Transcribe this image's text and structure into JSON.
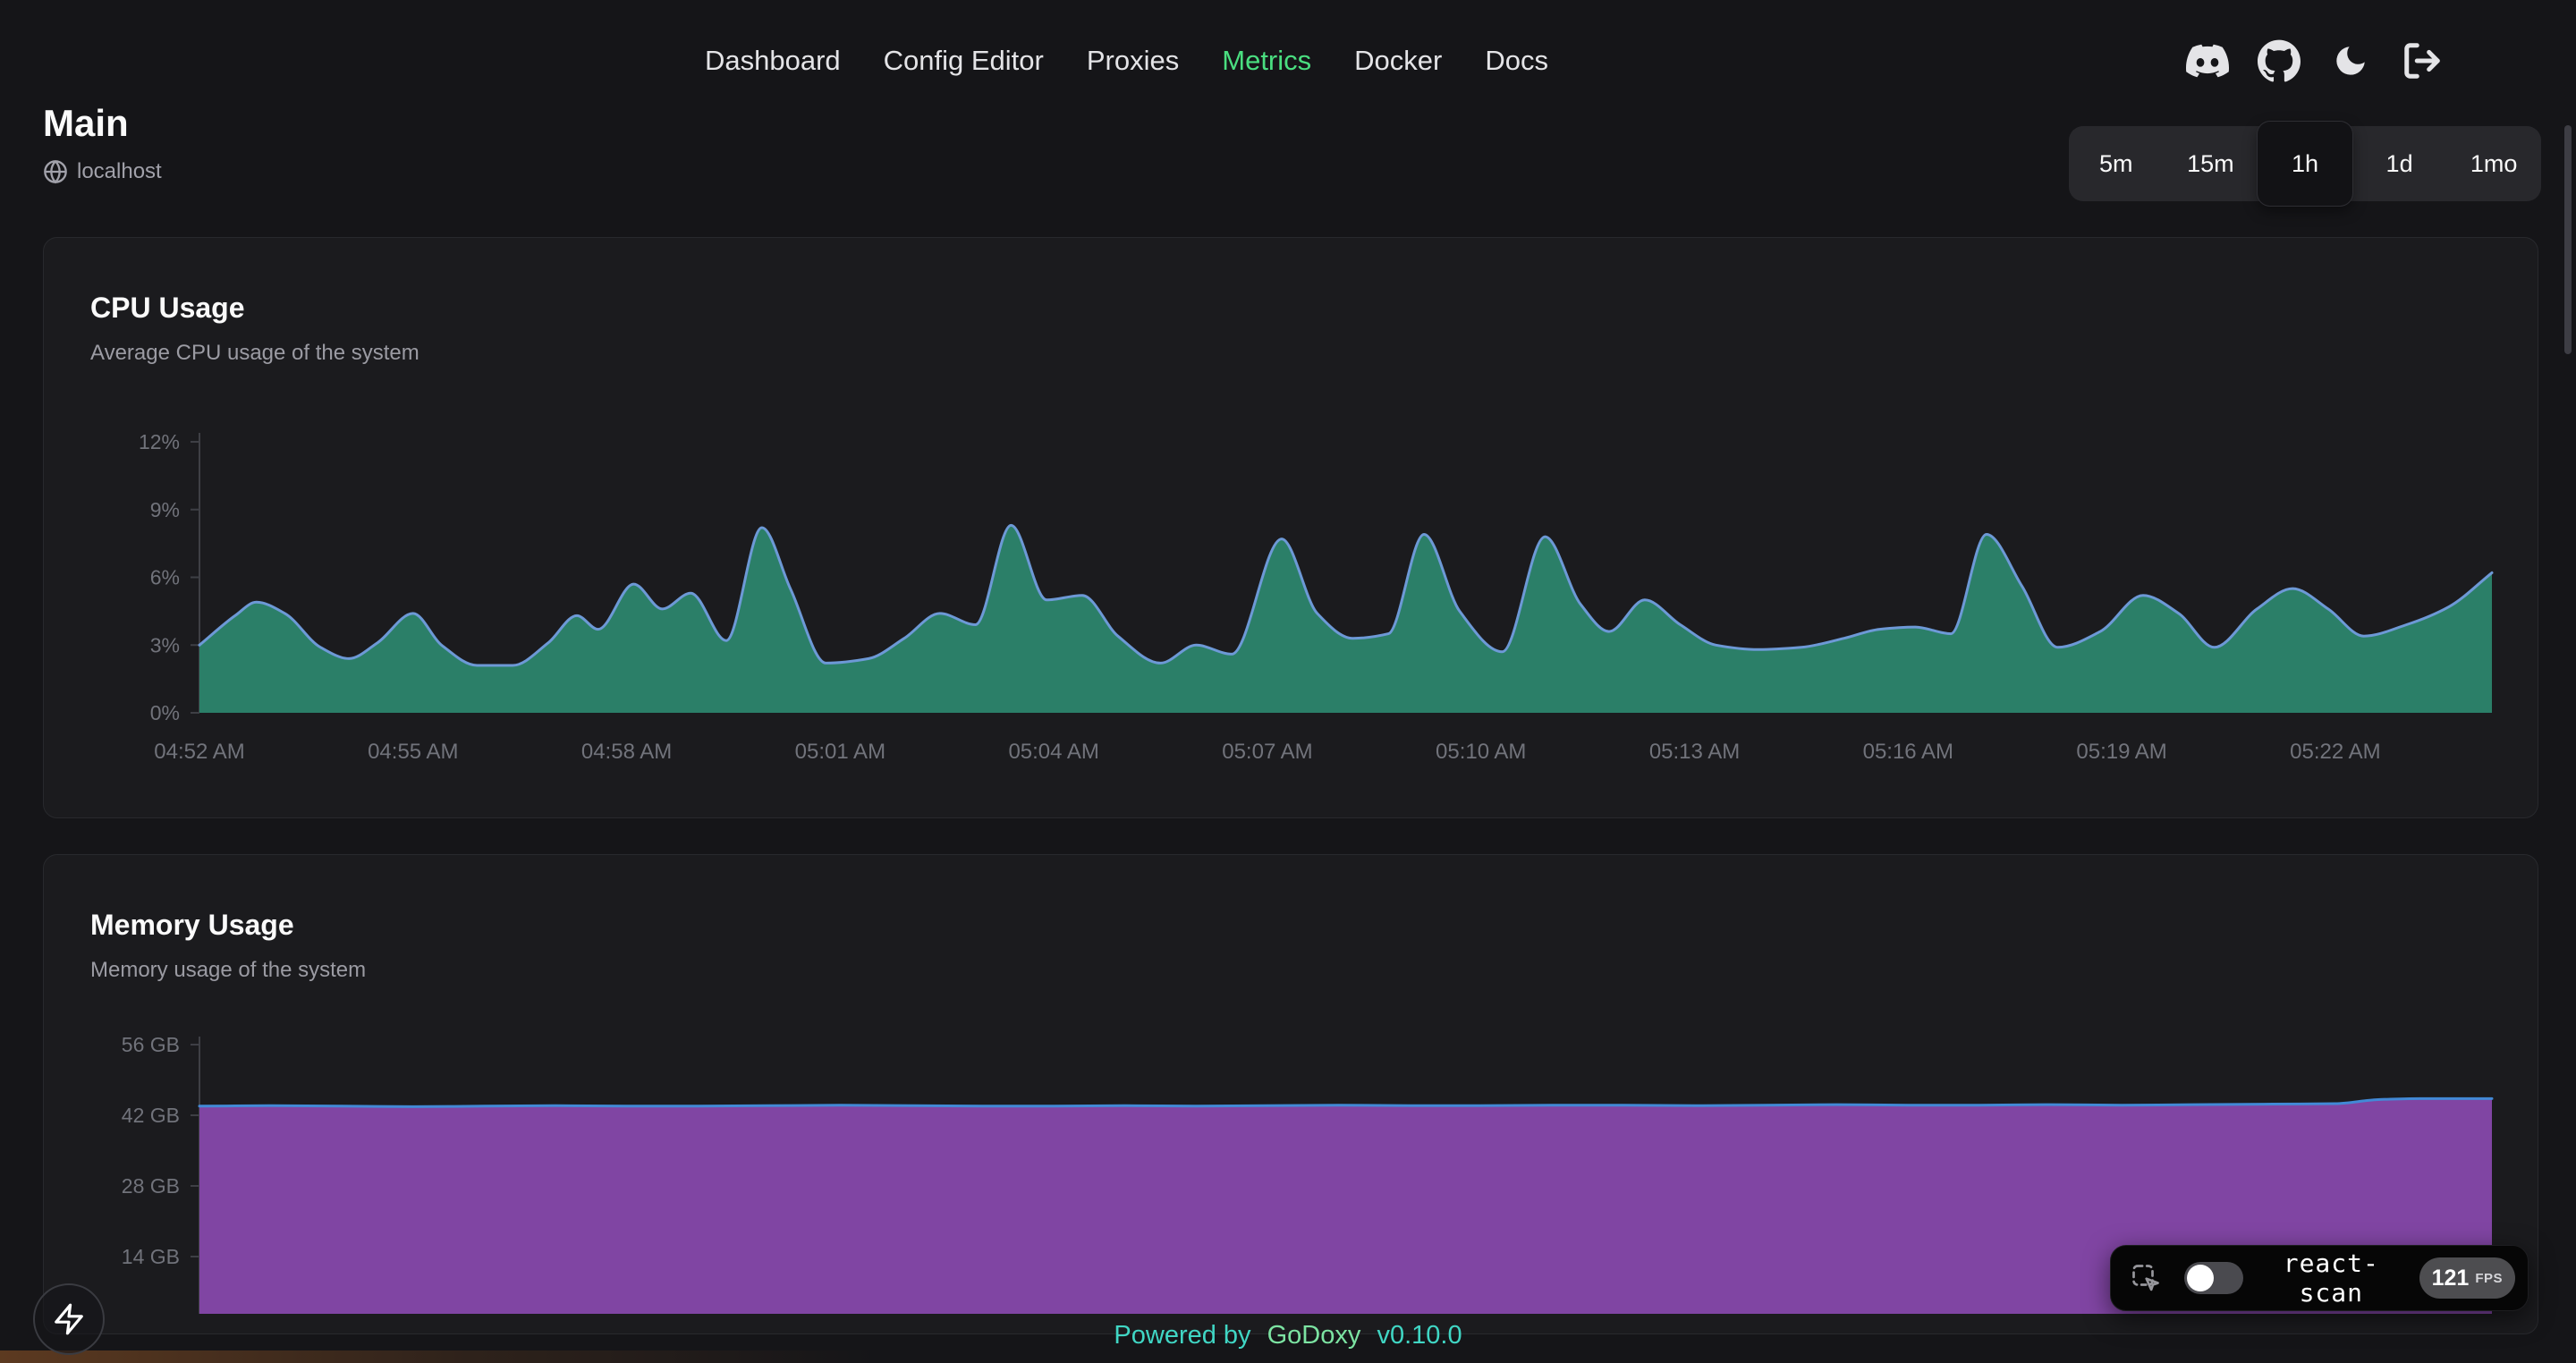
{
  "nav": {
    "items": [
      {
        "label": "Dashboard",
        "active": false
      },
      {
        "label": "Config Editor",
        "active": false
      },
      {
        "label": "Proxies",
        "active": false
      },
      {
        "label": "Metrics",
        "active": true
      },
      {
        "label": "Docker",
        "active": false
      },
      {
        "label": "Docs",
        "active": false
      }
    ],
    "icons": [
      "discord",
      "github",
      "moon-theme-toggle",
      "logout"
    ]
  },
  "page": {
    "agent_name": "Main",
    "host": "localhost",
    "host_icon": "globe"
  },
  "time_range": {
    "options": [
      "5m",
      "15m",
      "1h",
      "1d",
      "1mo"
    ],
    "selected": "1h"
  },
  "cards": [
    {
      "title": "CPU Usage",
      "subtitle": "Average CPU usage of the system"
    },
    {
      "title": "Memory Usage",
      "subtitle": "Memory usage of the system"
    }
  ],
  "footer": {
    "powered_by": "Powered by",
    "brand": "GoDoxy",
    "version": "v0.10.0"
  },
  "react_scan": {
    "label": "react-scan",
    "fps": "121",
    "fps_unit": "FPS",
    "toggle_on": false,
    "inspect_icon": "dashed-box-pointer"
  },
  "fab_icon": "lightning-bolt",
  "colors": {
    "page_bg": "#151518",
    "card_bg": "#1b1b1e",
    "accent_green": "#4ade80",
    "cpu_fill": "#2b7f68",
    "cpu_stroke": "#6d99d6",
    "mem_fill": "#8045a3",
    "mem_stroke": "#4289d6",
    "footer_teal": "#40d6c4"
  },
  "chart_data": [
    {
      "type": "area",
      "title": "CPU Usage",
      "subtitle": "Average CPU usage of the system",
      "unit": "%",
      "grid": false,
      "legend": false,
      "ylim": [
        0,
        12.4
      ],
      "y_ticks": [
        0,
        3,
        6,
        9,
        12
      ],
      "y_tick_labels": [
        "0%",
        "3%",
        "6%",
        "9%",
        "12%"
      ],
      "x_domain_minutes": [
        0,
        32.2
      ],
      "x_ticks": [
        {
          "t": 0,
          "label": "04:52 AM"
        },
        {
          "t": 3,
          "label": "04:55 AM"
        },
        {
          "t": 6,
          "label": "04:58 AM"
        },
        {
          "t": 9,
          "label": "05:01 AM"
        },
        {
          "t": 12,
          "label": "05:04 AM"
        },
        {
          "t": 15,
          "label": "05:07 AM"
        },
        {
          "t": 18,
          "label": "05:10 AM"
        },
        {
          "t": 21,
          "label": "05:13 AM"
        },
        {
          "t": 24,
          "label": "05:16 AM"
        },
        {
          "t": 27,
          "label": "05:19 AM"
        },
        {
          "t": 30,
          "label": "05:22 AM"
        }
      ],
      "points": [
        [
          0,
          3.0
        ],
        [
          0.5,
          4.3
        ],
        [
          0.8,
          4.9
        ],
        [
          1.2,
          4.4
        ],
        [
          1.7,
          2.9
        ],
        [
          2.1,
          2.4
        ],
        [
          2.5,
          3.1
        ],
        [
          3.0,
          4.4
        ],
        [
          3.4,
          3.0
        ],
        [
          3.9,
          2.1
        ],
        [
          4.4,
          2.1
        ],
        [
          4.9,
          3.1
        ],
        [
          5.3,
          4.3
        ],
        [
          5.6,
          3.7
        ],
        [
          6.1,
          5.7
        ],
        [
          6.5,
          4.6
        ],
        [
          6.9,
          5.3
        ],
        [
          7.4,
          3.2
        ],
        [
          7.9,
          8.2
        ],
        [
          8.3,
          5.5
        ],
        [
          8.8,
          2.2
        ],
        [
          9.4,
          2.4
        ],
        [
          9.9,
          3.3
        ],
        [
          10.4,
          4.4
        ],
        [
          10.9,
          3.9
        ],
        [
          11.4,
          8.3
        ],
        [
          11.9,
          5.0
        ],
        [
          12.4,
          5.2
        ],
        [
          12.9,
          3.4
        ],
        [
          13.5,
          2.2
        ],
        [
          14.0,
          3.0
        ],
        [
          14.5,
          2.6
        ],
        [
          15.2,
          7.7
        ],
        [
          15.7,
          4.4
        ],
        [
          16.2,
          3.3
        ],
        [
          16.7,
          3.5
        ],
        [
          17.2,
          7.9
        ],
        [
          17.7,
          4.5
        ],
        [
          18.3,
          2.7
        ],
        [
          18.9,
          7.8
        ],
        [
          19.4,
          4.8
        ],
        [
          19.8,
          3.6
        ],
        [
          20.3,
          5.0
        ],
        [
          20.8,
          3.9
        ],
        [
          21.3,
          3.0
        ],
        [
          21.9,
          2.8
        ],
        [
          22.5,
          2.9
        ],
        [
          23.1,
          3.3
        ],
        [
          23.6,
          3.7
        ],
        [
          24.1,
          3.8
        ],
        [
          24.6,
          3.5
        ],
        [
          25.1,
          7.9
        ],
        [
          25.6,
          5.6
        ],
        [
          26.1,
          2.9
        ],
        [
          26.7,
          3.6
        ],
        [
          27.3,
          5.2
        ],
        [
          27.8,
          4.4
        ],
        [
          28.3,
          2.9
        ],
        [
          28.9,
          4.6
        ],
        [
          29.4,
          5.5
        ],
        [
          29.9,
          4.6
        ],
        [
          30.4,
          3.4
        ],
        [
          31.0,
          3.9
        ],
        [
          31.6,
          4.7
        ],
        [
          32.2,
          6.2
        ]
      ],
      "fill": "#2b7f68",
      "stroke": "#6d99d6",
      "axis_color": "#3e3f45",
      "label_color": "#71737b"
    },
    {
      "type": "area",
      "title": "Memory Usage",
      "subtitle": "Memory usage of the system",
      "unit": "GB",
      "grid": false,
      "legend": false,
      "ylim": [
        14,
        57.6
      ],
      "y_ticks": [
        14,
        28,
        42,
        56
      ],
      "y_tick_labels": [
        "14 GB",
        "28 GB",
        "42 GB",
        "56 GB"
      ],
      "x_domain_minutes": [
        0,
        32.2
      ],
      "x_ticks": [],
      "points": [
        [
          0,
          43.8
        ],
        [
          1,
          43.9
        ],
        [
          2,
          43.8
        ],
        [
          3,
          43.7
        ],
        [
          4,
          43.8
        ],
        [
          5,
          43.9
        ],
        [
          6,
          43.8
        ],
        [
          7,
          43.8
        ],
        [
          8,
          43.9
        ],
        [
          9,
          44.0
        ],
        [
          10,
          43.9
        ],
        [
          11,
          43.8
        ],
        [
          12,
          43.8
        ],
        [
          13,
          43.9
        ],
        [
          14,
          43.8
        ],
        [
          15,
          43.9
        ],
        [
          16,
          44.0
        ],
        [
          17,
          43.9
        ],
        [
          18,
          43.9
        ],
        [
          19,
          44.0
        ],
        [
          20,
          44.0
        ],
        [
          21,
          43.9
        ],
        [
          22,
          44.0
        ],
        [
          23,
          44.1
        ],
        [
          24,
          44.0
        ],
        [
          25,
          44.0
        ],
        [
          26,
          44.1
        ],
        [
          27,
          44.0
        ],
        [
          28,
          44.1
        ],
        [
          29,
          44.2
        ],
        [
          30,
          44.3
        ],
        [
          30.6,
          45.1
        ],
        [
          31.2,
          45.3
        ],
        [
          32.2,
          45.3
        ]
      ],
      "fill": "#8045a3",
      "stroke": "#4289d6",
      "axis_color": "#3e3f45",
      "label_color": "#71737b"
    }
  ]
}
